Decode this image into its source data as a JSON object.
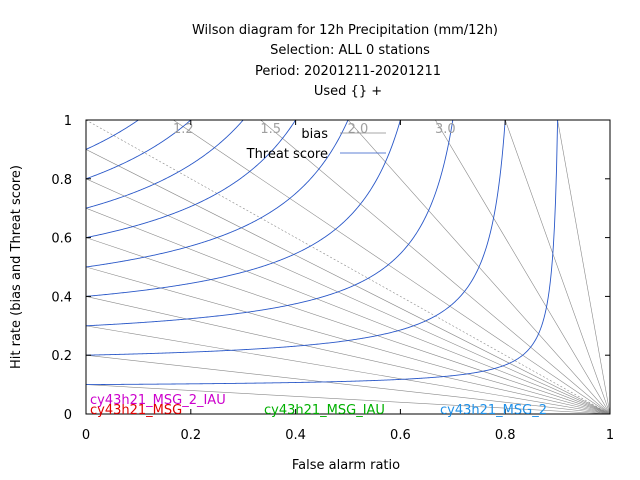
{
  "chart_data": {
    "type": "line",
    "title_lines": [
      "Wilson diagram  for 12h Precipitation (mm/12h)",
      "Selection: ALL      0 stations",
      "Period: 20201211-20201211",
      "Used {} +"
    ],
    "xlabel": "False alarm ratio",
    "ylabel": "Hit rate (bias and Threat score)",
    "xlim": [
      0,
      1
    ],
    "ylim": [
      0,
      1
    ],
    "x_ticks": [
      "0",
      "0.2",
      "0.4",
      "0.6",
      "0.8",
      "1"
    ],
    "y_ticks": [
      "0",
      "0.2",
      "0.4",
      "0.6",
      "0.8",
      "1"
    ],
    "x_tick_values": [
      0,
      0.2,
      0.4,
      0.6,
      0.8,
      1
    ],
    "y_tick_values": [
      0,
      0.2,
      0.4,
      0.6,
      0.8,
      1
    ],
    "legend": [
      {
        "label": "bias",
        "color": "#8a8a8a"
      },
      {
        "label": "Threat score",
        "color": "#2a58c8"
      }
    ],
    "bias_lines": [
      0.1,
      0.2,
      0.3,
      0.4,
      0.5,
      0.6,
      0.7,
      0.8,
      0.9,
      1.0,
      1.2,
      1.5,
      2.0,
      3.0,
      5.0,
      10.0
    ],
    "bias_labels": [
      {
        "text": "1.2",
        "bias": 1.2
      },
      {
        "text": "1.5",
        "bias": 1.5
      },
      {
        "text": "2.0",
        "bias": 2.0
      },
      {
        "text": "3.0",
        "bias": 3.0
      }
    ],
    "threat_score_curves": [
      0.1,
      0.2,
      0.3,
      0.4,
      0.5,
      0.6,
      0.7,
      0.8,
      0.9
    ],
    "series": [
      {
        "name": "cy43h21_MSG_2_IAU",
        "color": "#cc00cc",
        "values": []
      },
      {
        "name": "cy43h21_MSG",
        "color": "#e00000",
        "values": []
      },
      {
        "name": "cy43h21_MSG_IAU",
        "color": "#00b000",
        "values": []
      },
      {
        "name": "cy43h21_MSG_2",
        "color": "#1e90e8",
        "values": []
      }
    ]
  }
}
